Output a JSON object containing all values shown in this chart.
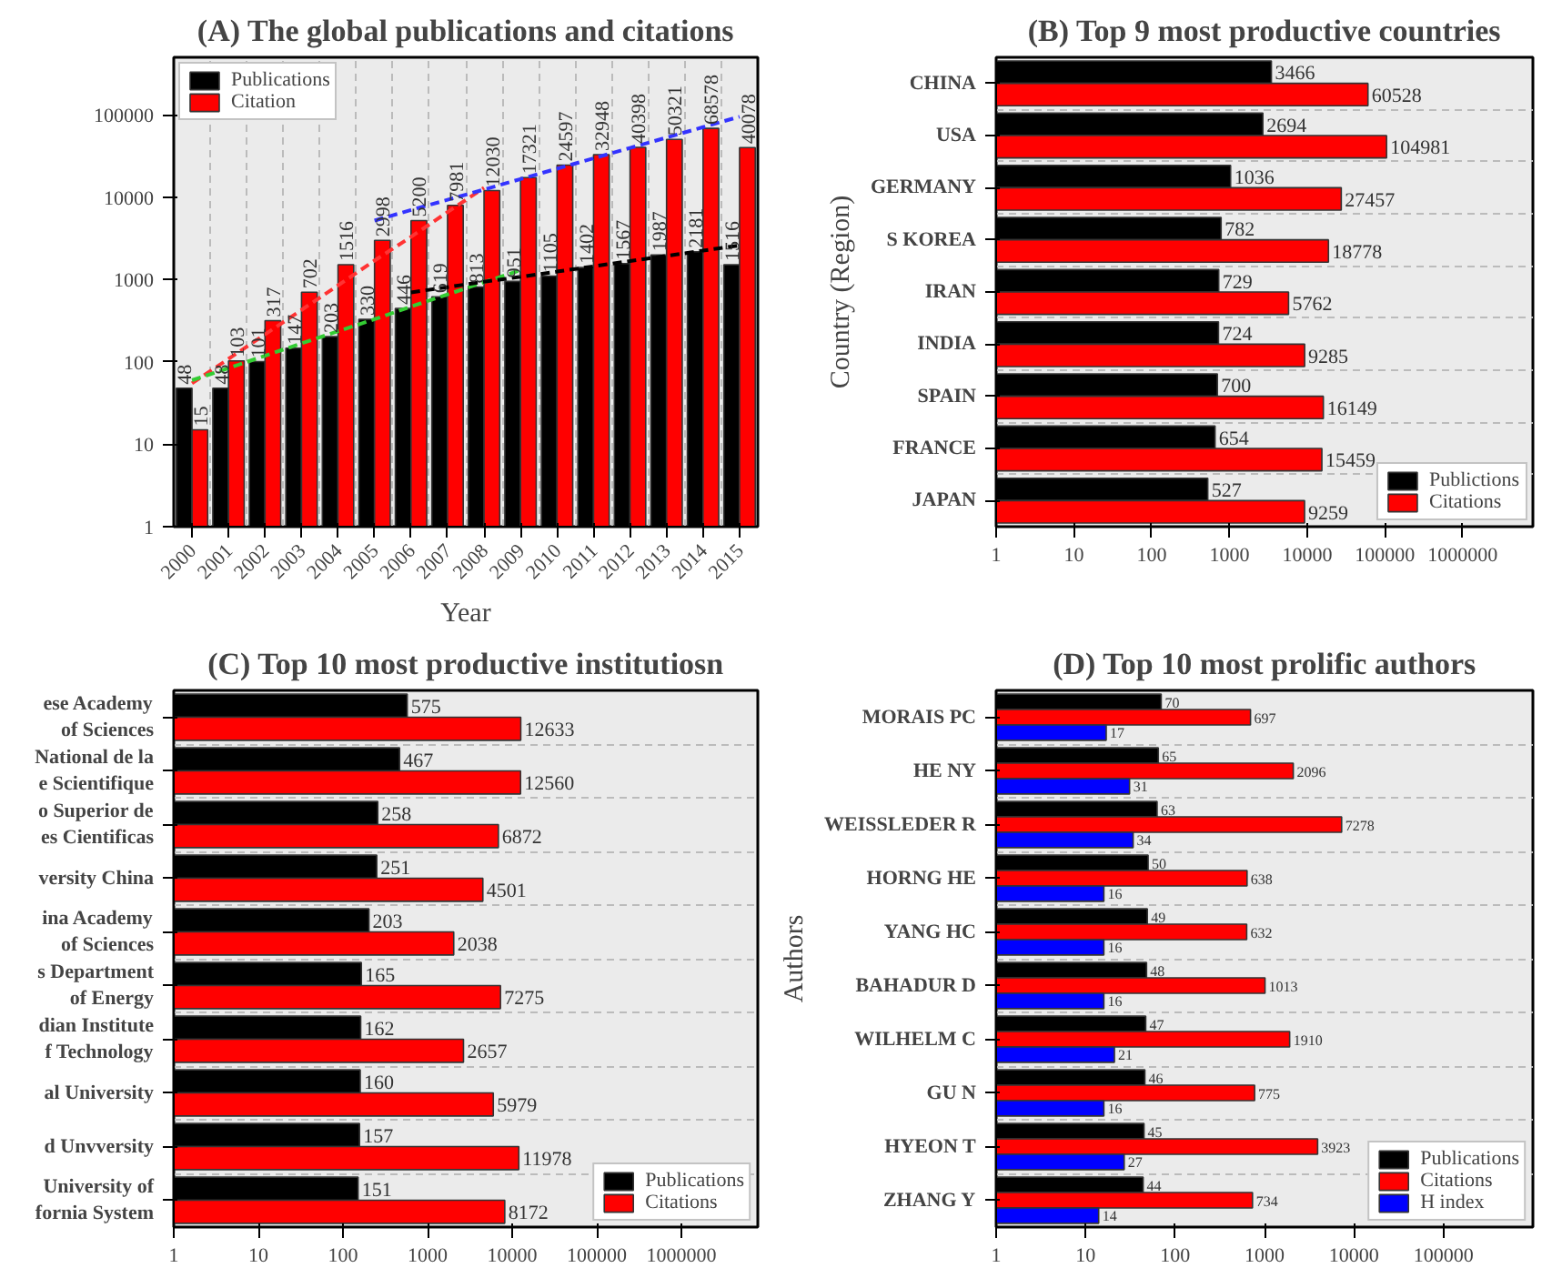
{
  "chart_data": [
    {
      "type": "bar",
      "title": "(A) The global publications and citations",
      "xlabel": "Year",
      "categories": [
        "2000",
        "2001",
        "2002",
        "2003",
        "2004",
        "2005",
        "2006",
        "2007",
        "2008",
        "2009",
        "2010",
        "2011",
        "2012",
        "2013",
        "2014",
        "2015"
      ],
      "series": [
        {
          "name": "Publications",
          "color": "#000000",
          "values": [
            48,
            48,
            101,
            147,
            203,
            330,
            446,
            619,
            813,
            951,
            1105,
            1402,
            1567,
            1987,
            2181,
            1516
          ],
          "value_labels": [
            "48",
            "48",
            "101",
            "147",
            "203",
            "330",
            "446",
            "619",
            "813",
            "951",
            "1105",
            "1402",
            "1567",
            "1987",
            "2181",
            "1516"
          ]
        },
        {
          "name": "Citation",
          "color": "#ff0000",
          "values": [
            15,
            103,
            317,
            702,
            1516,
            2998,
            5200,
            7981,
            12030,
            17321,
            24597,
            32948,
            40398,
            50321,
            68578,
            40078
          ],
          "value_labels": [
            "15",
            "103",
            "317",
            "702",
            "1516",
            "2998",
            "5200",
            "7981",
            "12030",
            "17321",
            "24597",
            "32948",
            "40398",
            "50321",
            "68578",
            "40078"
          ]
        },
        {
          "type": "line",
          "color": "#ff3333",
          "line_style": "dashed",
          "values": [
            55,
            109,
            216,
            428,
            850,
            1700,
            3300,
            6600,
            13000,
            null,
            null,
            null,
            null,
            null,
            null,
            null
          ]
        },
        {
          "type": "line",
          "color": "#33cc33",
          "line_style": "dashed",
          "values": [
            60,
            84,
            119,
            168,
            236,
            330,
            470,
            660,
            930,
            1300,
            null,
            null,
            null,
            null,
            null,
            null
          ]
        },
        {
          "type": "line",
          "color": "#3333ff",
          "line_style": "dashed",
          "values": [
            null,
            null,
            null,
            null,
            null,
            5200,
            7000,
            9300,
            12400,
            16600,
            22200,
            29700,
            39700,
            53000,
            71000,
            95000
          ]
        },
        {
          "type": "line",
          "color": "#000000",
          "line_style": "dashed",
          "values": [
            null,
            null,
            null,
            null,
            null,
            null,
            700,
            810,
            940,
            1080,
            1250,
            1450,
            1680,
            1940,
            2250,
            2600
          ]
        }
      ],
      "log": "y",
      "ylim": [
        1,
        500000
      ],
      "yticks": [
        1,
        10,
        100,
        1000,
        10000,
        100000
      ],
      "grid": "x",
      "legend": "top left"
    },
    {
      "type": "bar",
      "orientation": "horizontal",
      "title": "(B) Top 9 most productive countries",
      "ylabel": "Country (Region)",
      "categories": [
        "CHINA",
        "USA",
        "GERMANY",
        "S KOREA",
        "IRAN",
        "INDIA",
        "SPAIN",
        "FRANCE",
        "JAPAN"
      ],
      "series": [
        {
          "name": "Publictions",
          "color": "#000000",
          "values": [
            3466,
            2694,
            1036,
            782,
            729,
            724,
            700,
            654,
            527
          ]
        },
        {
          "name": "Citations",
          "color": "#ff0000",
          "values": [
            60528,
            104981,
            27457,
            18778,
            5762,
            9285,
            16149,
            15459,
            9259
          ]
        }
      ],
      "log": "x",
      "xlim": [
        1,
        8000000
      ],
      "xticks": [
        1,
        10,
        100,
        1000,
        10000,
        100000,
        1000000
      ],
      "data_labels": true,
      "grid": "y",
      "legend": "bottom right"
    },
    {
      "type": "bar",
      "orientation": "horizontal",
      "title": "(C) Top 10 most productive institutiosn",
      "categories": [
        "ese Academy\nof Sciences",
        "National de la\ne Scientifique",
        "o Superior de\nes Cientificas",
        "versity China",
        "ina Academy\nof Sciences",
        "s Department\nof Energy",
        "dian Institute\nf Technology",
        "al University",
        "d Unvversity",
        "University of\nfornia System"
      ],
      "series": [
        {
          "name": "Publications",
          "color": "#000000",
          "values": [
            575,
            467,
            258,
            251,
            203,
            165,
            162,
            160,
            157,
            151
          ]
        },
        {
          "name": "Citations",
          "color": "#ff0000",
          "values": [
            12633,
            12560,
            6872,
            4501,
            2038,
            7275,
            2657,
            5979,
            11978,
            8172
          ]
        }
      ],
      "log": "x",
      "xlim": [
        1,
        8000000
      ],
      "xticks": [
        1,
        10,
        100,
        1000,
        10000,
        100000,
        1000000
      ],
      "data_labels": true,
      "grid": "y",
      "legend": "bottom right"
    },
    {
      "type": "bar",
      "orientation": "horizontal",
      "title": "(D) Top 10 most prolific authors",
      "ylabel": "Authors",
      "categories": [
        "MORAIS PC",
        "HE NY",
        "WEISSLEDER R",
        "HORNG HE",
        "YANG HC",
        "BAHADUR D",
        "WILHELM C",
        "GU N",
        "HYEON T",
        "ZHANG Y"
      ],
      "series": [
        {
          "name": "Publications",
          "color": "#000000",
          "values": [
            70,
            65,
            63,
            50,
            49,
            48,
            47,
            46,
            45,
            44
          ]
        },
        {
          "name": "Citations",
          "color": "#ff0000",
          "values": [
            697,
            2096,
            7278,
            638,
            632,
            1013,
            1910,
            775,
            3923,
            734
          ]
        },
        {
          "name": "H index",
          "color": "#0000ff",
          "values": [
            17,
            31,
            34,
            16,
            16,
            16,
            21,
            16,
            27,
            14
          ]
        }
      ],
      "log": "x",
      "xlim": [
        1,
        1000000
      ],
      "xticks": [
        1,
        10,
        100,
        1000,
        10000,
        100000
      ],
      "data_labels": true,
      "grid": "y",
      "legend": "bottom right"
    }
  ]
}
